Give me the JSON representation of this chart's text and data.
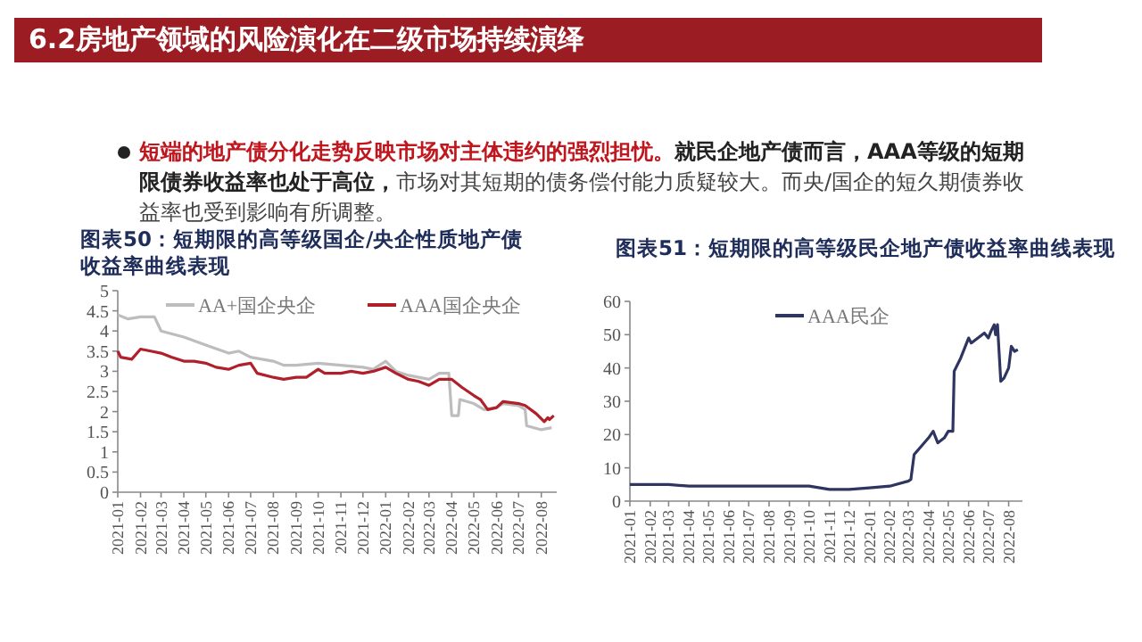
{
  "chart_data": [
    {
      "type": "other",
      "title": "6.2房地产领域的风险演化在二级市场持续演绎",
      "annotations": [
        "短端的地产债分化走势反映市场对主体违约的强烈担忧。",
        "就民企地产债而言，AAA等级的短期限债券收益率也处于高位，",
        "市场对其短期的债务偿付能力质疑较大。而央/国企的短久期债券收益率也受到影响有所调整。"
      ]
    },
    {
      "type": "line",
      "title": "图表50：短期限的高等级国企/央企性质地产债收益率曲线表现",
      "xlim": [
        "2021-01-01",
        "2022-08-22"
      ],
      "xticks": [
        "2021-01",
        "2021-02",
        "2021-03",
        "2021-04",
        "2021-05",
        "2021-06",
        "2021-07",
        "2021-08",
        "2021-09",
        "2021-10",
        "2021-11",
        "2021-12",
        "2022-01",
        "2022-02",
        "2022-03",
        "2022-04",
        "2022-05",
        "2022-06",
        "2022-07",
        "2022-08"
      ],
      "ylim": [
        0,
        5
      ],
      "yticks": [
        0,
        0.5,
        1,
        1.5,
        2,
        2.5,
        3,
        3.5,
        4,
        4.5,
        5
      ],
      "legend": "top",
      "series": [
        {
          "name": "AA+国企央企",
          "color": "#bdbdbd",
          "x": [
            "2021-01-01",
            "2021-01-15",
            "2021-02-01",
            "2021-02-20",
            "2021-03-01",
            "2021-04-01",
            "2021-05-01",
            "2021-06-01",
            "2021-06-15",
            "2021-07-01",
            "2021-08-01",
            "2021-08-15",
            "2021-09-01",
            "2021-10-01",
            "2021-11-01",
            "2021-12-01",
            "2021-12-15",
            "2022-01-01",
            "2022-01-15",
            "2022-02-01",
            "2022-03-01",
            "2022-03-15",
            "2022-03-28",
            "2022-04-01",
            "2022-04-10",
            "2022-04-12",
            "2022-05-01",
            "2022-05-15",
            "2022-06-01",
            "2022-06-10",
            "2022-07-01",
            "2022-07-10",
            "2022-07-12",
            "2022-08-01",
            "2022-08-15"
          ],
          "values": [
            4.4,
            4.3,
            4.35,
            4.35,
            4.0,
            3.85,
            3.65,
            3.45,
            3.5,
            3.35,
            3.25,
            3.15,
            3.15,
            3.2,
            3.15,
            3.1,
            3.05,
            3.25,
            3.0,
            2.9,
            2.8,
            2.95,
            2.95,
            1.9,
            1.9,
            2.3,
            2.2,
            2.05,
            2.1,
            2.2,
            2.15,
            2.05,
            1.65,
            1.55,
            1.6
          ]
        },
        {
          "name": "AAA国企央企",
          "color": "#b0202a",
          "x": [
            "2021-01-01",
            "2021-01-05",
            "2021-01-20",
            "2021-02-01",
            "2021-02-15",
            "2021-03-01",
            "2021-03-15",
            "2021-04-01",
            "2021-04-15",
            "2021-05-01",
            "2021-05-15",
            "2021-06-01",
            "2021-06-15",
            "2021-07-01",
            "2021-07-10",
            "2021-08-01",
            "2021-08-15",
            "2021-09-01",
            "2021-09-15",
            "2021-10-01",
            "2021-10-10",
            "2021-11-01",
            "2021-11-15",
            "2021-12-01",
            "2021-12-15",
            "2022-01-01",
            "2022-01-15",
            "2022-02-01",
            "2022-02-15",
            "2022-03-01",
            "2022-03-15",
            "2022-04-01",
            "2022-04-15",
            "2022-05-01",
            "2022-05-10",
            "2022-05-20",
            "2022-06-01",
            "2022-06-10",
            "2022-07-01",
            "2022-07-10",
            "2022-07-25",
            "2022-08-05",
            "2022-08-10",
            "2022-08-12",
            "2022-08-18"
          ],
          "values": [
            3.5,
            3.35,
            3.3,
            3.55,
            3.5,
            3.45,
            3.35,
            3.25,
            3.25,
            3.2,
            3.1,
            3.05,
            3.15,
            3.2,
            2.95,
            2.85,
            2.8,
            2.85,
            2.85,
            3.05,
            2.95,
            2.95,
            3.0,
            2.95,
            3.0,
            3.1,
            2.95,
            2.8,
            2.75,
            2.65,
            2.8,
            2.8,
            2.6,
            2.4,
            2.3,
            2.05,
            2.1,
            2.25,
            2.2,
            2.15,
            1.95,
            1.75,
            1.85,
            1.8,
            1.9
          ]
        }
      ]
    },
    {
      "type": "line",
      "title": "图表51：短期限的高等级民企地产债收益率曲线表现",
      "xlim": [
        "2021-01-01",
        "2022-08-22"
      ],
      "xticks": [
        "2021-01",
        "2021-02",
        "2021-03",
        "2021-04",
        "2021-05",
        "2021-06",
        "2021-07",
        "2021-08",
        "2021-09",
        "2021-10",
        "2021-11",
        "2021-12",
        "2022-01",
        "2022-02",
        "2022-03",
        "2022-04",
        "2022-05",
        "2022-06",
        "2022-07",
        "2022-08"
      ],
      "ylim": [
        0,
        60
      ],
      "yticks": [
        0,
        10,
        20,
        30,
        40,
        50,
        60
      ],
      "legend": "top",
      "series": [
        {
          "name": "AAA民企",
          "color": "#2e3560",
          "x": [
            "2021-01-01",
            "2021-02-01",
            "2021-03-01",
            "2021-04-01",
            "2021-06-01",
            "2021-08-01",
            "2021-10-01",
            "2021-11-01",
            "2021-12-01",
            "2022-01-01",
            "2022-02-01",
            "2022-03-01",
            "2022-03-05",
            "2022-03-10",
            "2022-04-01",
            "2022-04-08",
            "2022-04-15",
            "2022-04-25",
            "2022-05-01",
            "2022-05-08",
            "2022-05-10",
            "2022-05-20",
            "2022-06-01",
            "2022-06-05",
            "2022-06-25",
            "2022-07-01",
            "2022-07-05",
            "2022-07-10",
            "2022-07-12",
            "2022-07-15",
            "2022-07-20",
            "2022-07-25",
            "2022-08-01",
            "2022-08-05",
            "2022-08-10",
            "2022-08-15"
          ],
          "values": [
            5,
            5,
            5,
            4.5,
            4.5,
            4.5,
            4.5,
            3.5,
            3.5,
            4,
            4.5,
            6,
            6.5,
            14,
            19,
            21,
            17.5,
            19,
            21,
            21,
            39,
            43,
            49,
            47.5,
            50.5,
            49,
            51,
            53,
            50,
            53,
            36,
            37,
            40,
            46.5,
            45,
            45.5
          ]
        }
      ]
    }
  ]
}
